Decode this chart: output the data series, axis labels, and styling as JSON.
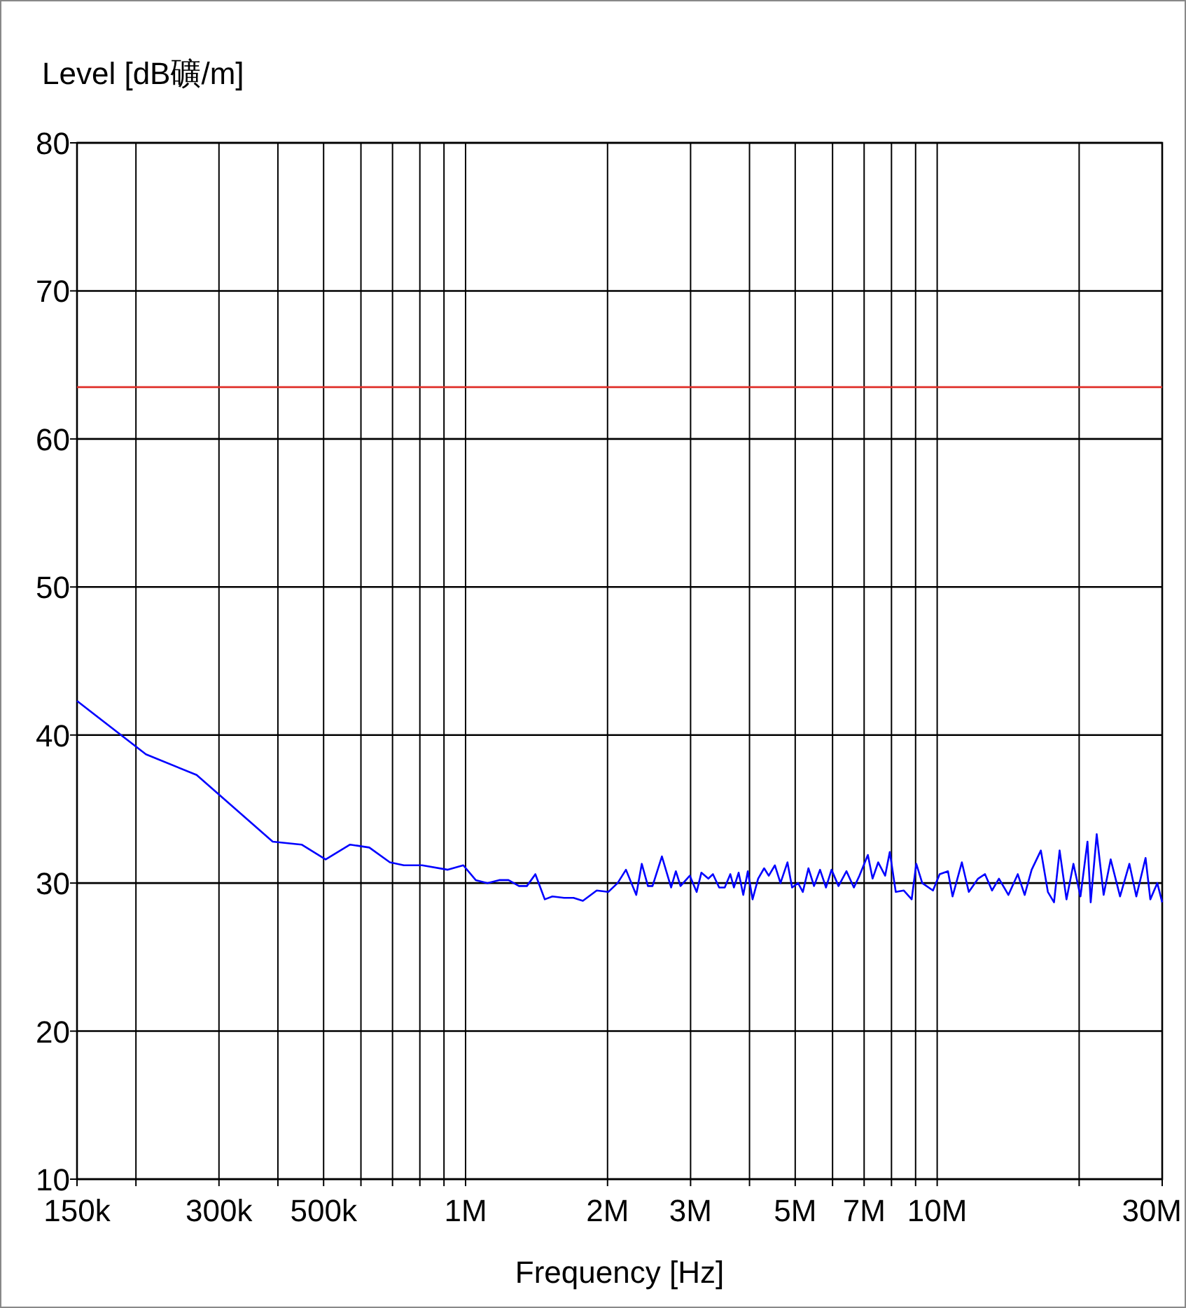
{
  "chart_data": {
    "type": "line",
    "xlabel": "Frequency [Hz]",
    "ylabel": "Level [dB礦/m]",
    "log": "x",
    "grid": true,
    "xlim": [
      150000,
      30000000
    ],
    "ylim": [
      10,
      80
    ],
    "yticks": [
      10,
      20,
      30,
      40,
      50,
      60,
      70,
      80
    ],
    "xticks": [
      {
        "value": 150000,
        "label": "150k"
      },
      {
        "value": 200000,
        "label": null
      },
      {
        "value": 300000,
        "label": "300k"
      },
      {
        "value": 400000,
        "label": null
      },
      {
        "value": 500000,
        "label": "500k"
      },
      {
        "value": 600000,
        "label": null
      },
      {
        "value": 700000,
        "label": null
      },
      {
        "value": 800000,
        "label": null
      },
      {
        "value": 900000,
        "label": null
      },
      {
        "value": 1000000,
        "label": "1M"
      },
      {
        "value": 2000000,
        "label": "2M"
      },
      {
        "value": 3000000,
        "label": "3M"
      },
      {
        "value": 4000000,
        "label": null
      },
      {
        "value": 5000000,
        "label": "5M"
      },
      {
        "value": 6000000,
        "label": null
      },
      {
        "value": 7000000,
        "label": "7M"
      },
      {
        "value": 8000000,
        "label": null
      },
      {
        "value": 9000000,
        "label": null
      },
      {
        "value": 10000000,
        "label": "10M"
      },
      {
        "value": 20000000,
        "label": null
      },
      {
        "value": 30000000,
        "label": "30M"
      }
    ],
    "ref_lines": [
      {
        "axis": "y",
        "value": 63.5,
        "color": "#e0302a"
      }
    ],
    "series": [
      {
        "color": "#0000ff",
        "x": [
          150000,
          210000,
          269000,
          390000,
          449000,
          505000,
          569000,
          625000,
          691000,
          740000,
          809000,
          917000,
          989000,
          1051000,
          1113000,
          1178000,
          1233000,
          1298000,
          1349000,
          1406000,
          1472000,
          1528000,
          1618000,
          1694000,
          1773000,
          1897000,
          2007000,
          2101000,
          2188000,
          2301000,
          2364000,
          2436000,
          2491000,
          2608000,
          2728000,
          2792000,
          2856000,
          2988000,
          3090000,
          3162000,
          3272000,
          3346000,
          3449000,
          3544000,
          3642000,
          3707000,
          3793000,
          3880000,
          3967000,
          4060000,
          4172000,
          4296000,
          4394000,
          4528000,
          4653000,
          4814000,
          4924000,
          5070000,
          5190000,
          5333000,
          5481000,
          5644000,
          5811000,
          5970000,
          6177000,
          6422000,
          6659000,
          6842000,
          7129000,
          7295000,
          7498000,
          7757000,
          7934000,
          8169000,
          8492000,
          8829000,
          9029000,
          9297000,
          9797000,
          10120000,
          10540000,
          10780000,
          11280000,
          11670000,
          12210000,
          12630000,
          13070000,
          13520000,
          14160000,
          14820000,
          15330000,
          15860000,
          16590000,
          17170000,
          17690000,
          18180000,
          18800000,
          19450000,
          20130000,
          20830000,
          21160000,
          21790000,
          22540000,
          23330000,
          24420000,
          25560000,
          26440000,
          27660000,
          28310000,
          29290000,
          30000000
        ],
        "values": [
          42.3,
          38.7,
          37.3,
          32.8,
          32.6,
          31.6,
          32.6,
          32.4,
          31.4,
          31.2,
          31.2,
          30.9,
          31.2,
          30.2,
          30.0,
          30.2,
          30.2,
          29.8,
          29.8,
          30.6,
          28.9,
          29.1,
          29.0,
          29.0,
          28.8,
          29.5,
          29.4,
          30.0,
          30.9,
          29.2,
          31.3,
          29.8,
          29.8,
          31.8,
          29.7,
          30.8,
          29.8,
          30.5,
          29.4,
          30.7,
          30.3,
          30.6,
          29.7,
          29.7,
          30.6,
          29.7,
          30.7,
          29.2,
          30.8,
          28.9,
          30.3,
          31.0,
          30.5,
          31.2,
          30.0,
          31.4,
          29.7,
          30.0,
          29.4,
          31.0,
          29.8,
          30.9,
          29.7,
          30.9,
          29.8,
          30.8,
          29.7,
          30.5,
          31.9,
          30.3,
          31.4,
          30.5,
          32.1,
          29.4,
          29.5,
          28.9,
          31.3,
          30.0,
          29.5,
          30.6,
          30.8,
          29.1,
          31.4,
          29.4,
          30.3,
          30.6,
          29.5,
          30.3,
          29.2,
          30.6,
          29.2,
          30.9,
          32.2,
          29.4,
          28.7,
          32.2,
          28.9,
          31.3,
          29.1,
          32.8,
          28.7,
          33.3,
          29.2,
          31.6,
          29.1,
          31.3,
          29.1,
          31.7,
          28.9,
          30.0,
          28.7
        ]
      }
    ]
  }
}
